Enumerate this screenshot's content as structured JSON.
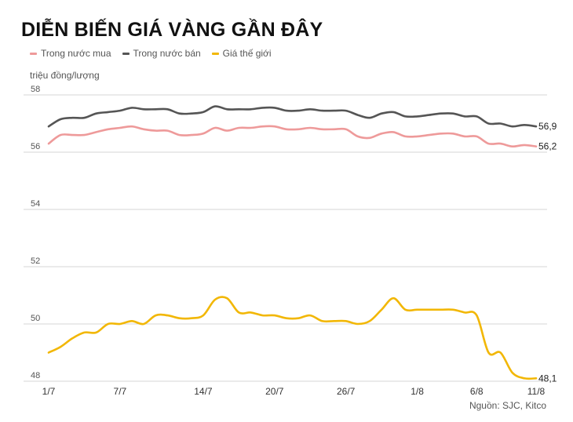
{
  "title": "DIỄN BIẾN GIÁ VÀNG GẦN ĐÂY",
  "unit_label": "triệu đồng/lượng",
  "source": "Nguồn: SJC, Kitco",
  "legend": [
    {
      "label": "Trong nước mua",
      "color": "#ee9a9a"
    },
    {
      "label": "Trong nước bán",
      "color": "#555555"
    },
    {
      "label": "Giá thế giới",
      "color": "#f2b705"
    }
  ],
  "chart_data": {
    "type": "line",
    "title": "DIỄN BIẾN GIÁ VÀNG GẦN ĐÂY",
    "ylabel": "triệu đồng/lượng",
    "ylim": [
      48,
      58
    ],
    "yticks": [
      48,
      50,
      52,
      54,
      56,
      58
    ],
    "grid": true,
    "legend_position": "top-left",
    "xtick_labels": [
      "1/7",
      "7/7",
      "14/7",
      "20/7",
      "26/7",
      "1/8",
      "6/8",
      "11/8"
    ],
    "xtick_index": [
      0,
      6,
      13,
      19,
      25,
      31,
      36,
      41
    ],
    "series": [
      {
        "name": "Trong nước mua",
        "color": "#ee9a9a",
        "end_label": "56,2",
        "values": [
          56.3,
          56.6,
          56.6,
          56.6,
          56.7,
          56.8,
          56.85,
          56.9,
          56.8,
          56.75,
          56.75,
          56.6,
          56.6,
          56.65,
          56.85,
          56.75,
          56.85,
          56.85,
          56.9,
          56.9,
          56.8,
          56.8,
          56.85,
          56.8,
          56.8,
          56.8,
          56.55,
          56.5,
          56.65,
          56.7,
          56.55,
          56.55,
          56.6,
          56.65,
          56.65,
          56.55,
          56.55,
          56.3,
          56.3,
          56.2,
          56.25,
          56.2
        ]
      },
      {
        "name": "Trong nước bán",
        "color": "#555555",
        "end_label": "56,9",
        "values": [
          56.9,
          57.15,
          57.2,
          57.2,
          57.35,
          57.4,
          57.45,
          57.55,
          57.5,
          57.5,
          57.5,
          57.35,
          57.35,
          57.4,
          57.6,
          57.5,
          57.5,
          57.5,
          57.55,
          57.55,
          57.45,
          57.45,
          57.5,
          57.45,
          57.45,
          57.45,
          57.3,
          57.2,
          57.35,
          57.4,
          57.25,
          57.25,
          57.3,
          57.35,
          57.35,
          57.25,
          57.25,
          57.0,
          57.0,
          56.9,
          56.95,
          56.9
        ]
      },
      {
        "name": "Giá thế giới",
        "color": "#f2b705",
        "end_label": "48,1",
        "values": [
          49.0,
          49.2,
          49.5,
          49.7,
          49.7,
          50.0,
          50.0,
          50.1,
          50.0,
          50.3,
          50.3,
          50.2,
          50.2,
          50.3,
          50.85,
          50.9,
          50.4,
          50.4,
          50.3,
          50.3,
          50.2,
          50.2,
          50.3,
          50.1,
          50.1,
          50.1,
          50.0,
          50.1,
          50.5,
          50.9,
          50.5,
          50.5,
          50.5,
          50.5,
          50.5,
          50.4,
          50.3,
          49.0,
          49.0,
          48.3,
          48.1,
          48.1
        ]
      }
    ]
  }
}
